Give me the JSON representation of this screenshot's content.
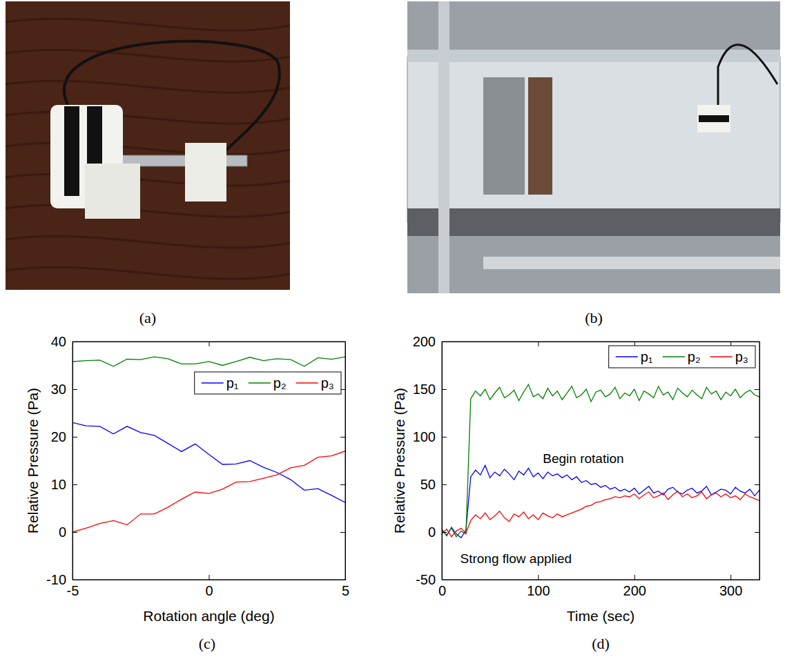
{
  "figure": {
    "panel_labels": [
      "(a)",
      "(b)",
      "(c)",
      "(d)"
    ]
  },
  "chart_data": [
    {
      "type": "line",
      "xlabel": "Rotation angle (deg)",
      "ylabel": "Relative Pressure (Pa)",
      "x": [
        -5,
        -4.5,
        -4,
        -3.5,
        -3,
        -2.5,
        -2,
        -1.5,
        -1,
        -0.5,
        0,
        0.5,
        1,
        1.5,
        2,
        2.5,
        3,
        3.5,
        4,
        4.5,
        5
      ],
      "series": [
        {
          "name": "p₁",
          "color": "#0000ff",
          "values": [
            23,
            22.3,
            22.2,
            20.6,
            22.2,
            20.9,
            20.3,
            18.6,
            16.9,
            18.5,
            16.3,
            14.2,
            14.3,
            15.0,
            13.6,
            12.5,
            11.0,
            8.8,
            9.1,
            7.7,
            6.2
          ]
        },
        {
          "name": "p₂",
          "color": "#008000",
          "values": [
            35.8,
            36.0,
            36.1,
            34.8,
            36.3,
            36.2,
            36.8,
            36.4,
            35.3,
            35.3,
            35.8,
            35.0,
            35.8,
            36.7,
            36.0,
            36.4,
            36.2,
            34.8,
            36.6,
            36.3,
            36.8
          ]
        },
        {
          "name": "p₃",
          "color": "#ff0000",
          "values": [
            0,
            0.8,
            1.8,
            2.4,
            1.5,
            3.8,
            3.8,
            5.2,
            6.9,
            8.4,
            8.1,
            9.0,
            10.5,
            10.6,
            11.3,
            12.0,
            13.5,
            14.0,
            15.7,
            16.0,
            17.0
          ]
        }
      ],
      "xlim": [
        -5,
        5
      ],
      "xticks": [
        -5,
        0,
        5
      ],
      "ylim": [
        -10,
        40
      ],
      "yticks": [
        -10,
        0,
        10,
        20,
        30,
        40
      ],
      "legend": "upper right",
      "grid": false
    },
    {
      "type": "line",
      "xlabel": "Time (sec)",
      "ylabel": "Relative Pressure (Pa)",
      "x": [
        0,
        5,
        10,
        15,
        20,
        25,
        30,
        35,
        40,
        45,
        50,
        55,
        60,
        65,
        70,
        75,
        80,
        85,
        90,
        95,
        100,
        105,
        110,
        115,
        120,
        125,
        130,
        135,
        140,
        145,
        150,
        155,
        160,
        165,
        170,
        175,
        180,
        185,
        190,
        195,
        200,
        205,
        210,
        215,
        220,
        225,
        230,
        235,
        240,
        245,
        250,
        255,
        260,
        265,
        270,
        275,
        280,
        285,
        290,
        295,
        300,
        305,
        310,
        315,
        320,
        325,
        330
      ],
      "series": [
        {
          "name": "p₁",
          "color": "#0000ff",
          "values": [
            3,
            -4,
            5,
            -2,
            -6,
            2,
            58,
            65,
            60,
            70,
            57,
            63,
            59,
            66,
            61,
            55,
            64,
            60,
            67,
            58,
            62,
            56,
            63,
            59,
            61,
            57,
            60,
            55,
            58,
            52,
            54,
            50,
            51,
            47,
            49,
            45,
            47,
            43,
            45,
            42,
            46,
            40,
            44,
            48,
            41,
            43,
            39,
            45,
            47,
            42,
            40,
            44,
            46,
            41,
            43,
            48,
            39,
            42,
            45,
            44,
            40,
            47,
            43,
            41,
            45,
            38,
            44
          ]
        },
        {
          "name": "p₂",
          "color": "#008000",
          "values": [
            2,
            -3,
            4,
            -5,
            1,
            -2,
            140,
            148,
            143,
            150,
            139,
            146,
            152,
            141,
            144,
            149,
            138,
            147,
            155,
            142,
            145,
            140,
            151,
            143,
            148,
            139,
            146,
            153,
            141,
            144,
            150,
            137,
            147,
            149,
            142,
            145,
            152,
            140,
            146,
            143,
            150,
            138,
            148,
            145,
            141,
            153,
            144,
            147,
            139,
            151,
            146,
            142,
            149,
            144,
            140,
            152,
            145,
            148,
            139,
            147,
            143,
            150,
            141,
            146,
            149,
            144,
            142
          ]
        },
        {
          "name": "p₃",
          "color": "#ff0000",
          "values": [
            -2,
            3,
            -5,
            1,
            4,
            -1,
            12,
            18,
            14,
            20,
            13,
            17,
            22,
            15,
            11,
            19,
            16,
            21,
            14,
            18,
            13,
            20,
            17,
            15,
            19,
            16,
            18,
            20,
            22,
            24,
            27,
            28,
            31,
            32,
            34,
            35,
            37,
            36,
            38,
            37,
            40,
            35,
            39,
            42,
            36,
            38,
            41,
            34,
            39,
            43,
            37,
            40,
            36,
            38,
            42,
            35,
            39,
            41,
            37,
            40,
            36,
            38,
            34,
            40,
            37,
            35,
            33
          ]
        }
      ],
      "xlim": [
        0,
        330
      ],
      "xticks": [
        0,
        100,
        200,
        300
      ],
      "ylim": [
        -50,
        200
      ],
      "yticks": [
        -50,
        0,
        50,
        100,
        150,
        200
      ],
      "annotations": [
        {
          "text": "Begin rotation",
          "x": 147,
          "y": 77
        },
        {
          "text": "Strong flow applied",
          "x": 77,
          "y": -28
        }
      ],
      "legend": "upper right",
      "grid": false
    }
  ]
}
